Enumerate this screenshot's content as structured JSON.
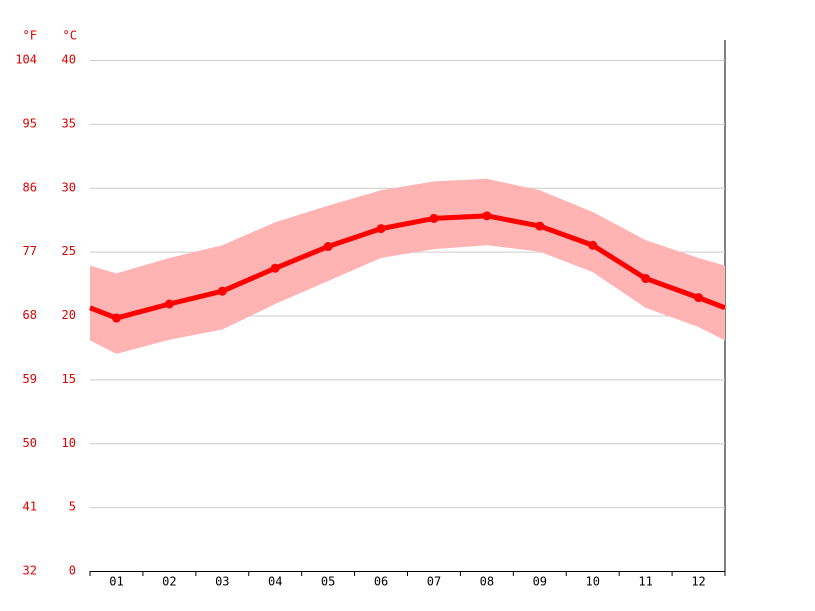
{
  "chart_data": {
    "type": "line",
    "ylabel": "°C",
    "y2label": "°F",
    "categories": [
      "01",
      "02",
      "03",
      "04",
      "05",
      "06",
      "07",
      "08",
      "09",
      "10",
      "11",
      "12"
    ],
    "values": [
      19.8,
      20.9,
      21.9,
      23.7,
      25.4,
      26.8,
      27.6,
      27.8,
      27.0,
      25.5,
      22.9,
      21.4
    ],
    "min": [
      17.0,
      18.1,
      18.9,
      20.9,
      22.7,
      24.5,
      25.2,
      25.5,
      25.0,
      23.4,
      20.6,
      19.1
    ],
    "max": [
      23.3,
      24.5,
      25.5,
      27.3,
      28.6,
      29.8,
      30.5,
      30.7,
      29.8,
      28.1,
      25.9,
      24.5
    ],
    "color": "#ff0000",
    "band_color": "#ffb3b3",
    "ylim": [
      0,
      40
    ],
    "yticks": [
      0,
      5,
      10,
      15,
      20,
      25,
      30,
      35,
      40
    ],
    "y2lim": [
      32,
      104
    ],
    "y2ticks": [
      32,
      41,
      50,
      59,
      68,
      77,
      86,
      95,
      104
    ],
    "grid": true
  }
}
